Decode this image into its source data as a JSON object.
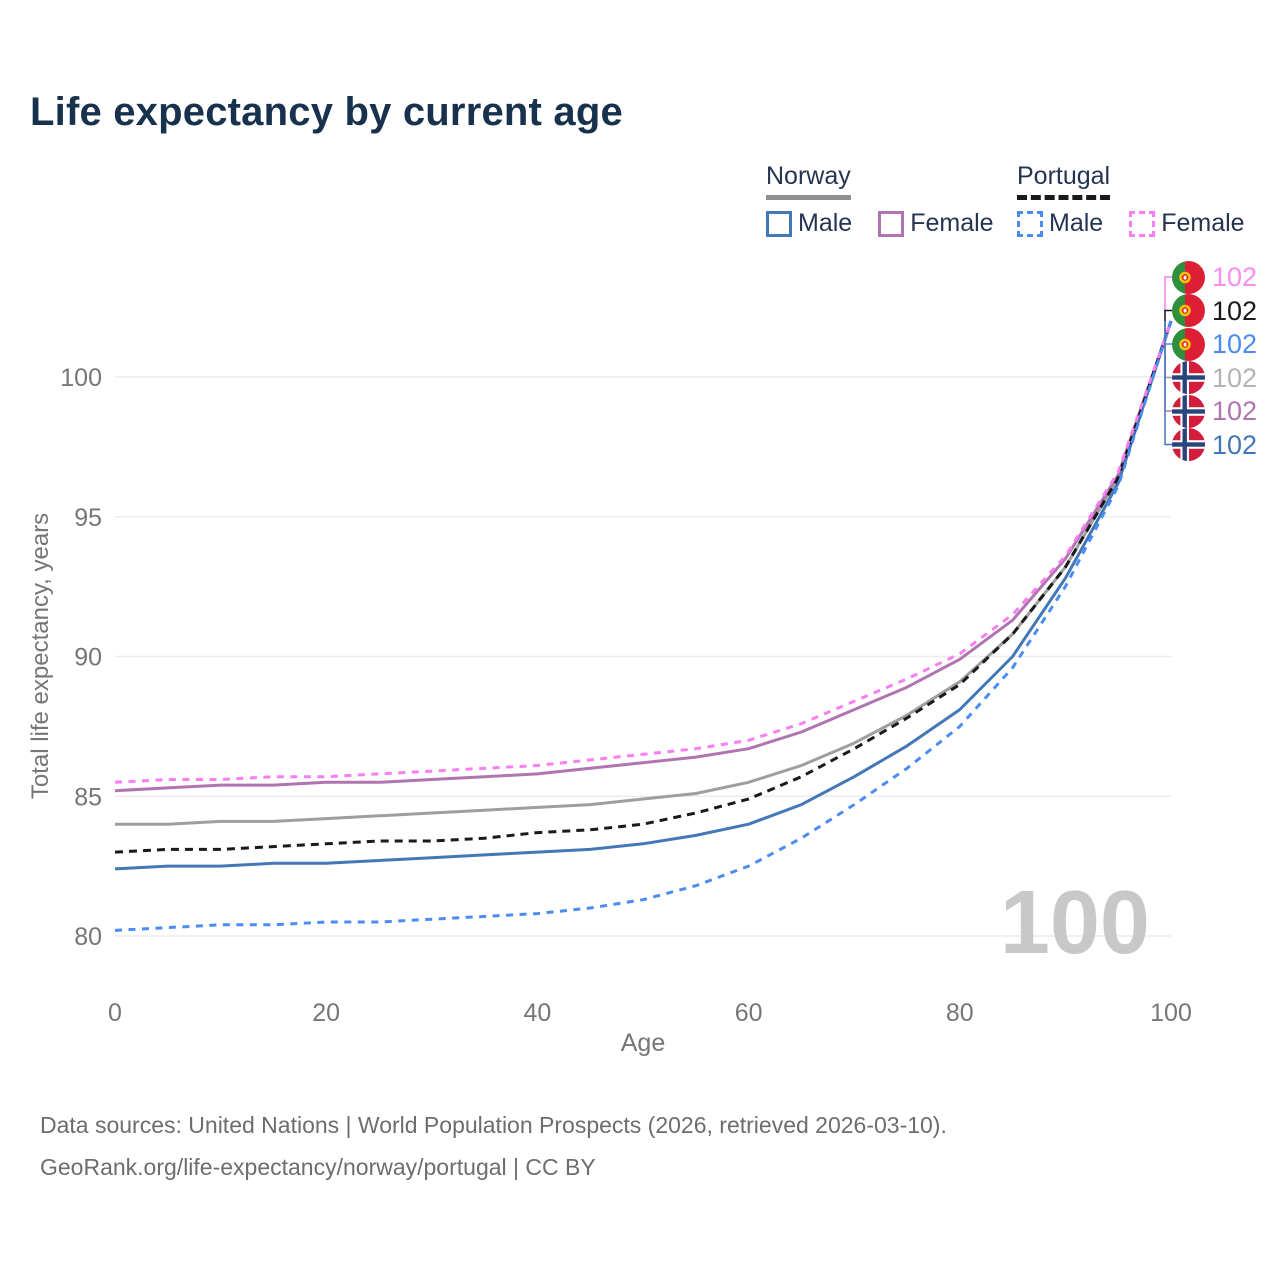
{
  "title": "Life expectancy by current age",
  "legend": {
    "groups": [
      {
        "country": "Norway",
        "line_style": "solid",
        "underline_color": "#8f8f8f",
        "items": [
          {
            "label": "Male",
            "color": "#4477b8",
            "dash": false
          },
          {
            "label": "Female",
            "color": "#b075b0",
            "dash": false
          }
        ]
      },
      {
        "country": "Portugal",
        "line_style": "dashed",
        "underline_color": "#1a1a1a",
        "items": [
          {
            "label": "Male",
            "color": "#4b8bf2",
            "dash": true
          },
          {
            "label": "Female",
            "color": "#f97ef2",
            "dash": true
          }
        ]
      }
    ]
  },
  "chart_data": {
    "type": "line",
    "title": "Life expectancy by current age",
    "xlabel": "Age",
    "ylabel": "Total life expectancy, years",
    "x": [
      0,
      5,
      10,
      15,
      20,
      25,
      30,
      35,
      40,
      45,
      50,
      55,
      60,
      65,
      70,
      75,
      80,
      85,
      90,
      95,
      100
    ],
    "xticks": [
      0,
      20,
      40,
      60,
      80,
      100
    ],
    "yticks": [
      80,
      85,
      90,
      95,
      100
    ],
    "xlim": [
      0,
      100
    ],
    "ylim": [
      78.5,
      104
    ],
    "grid": "horizontal",
    "legend_position": "top-right",
    "series": [
      {
        "name": "Norway Total",
        "country": "Norway",
        "sex": "Both",
        "color": "#9e9e9e",
        "label_color": "#b4b4b4",
        "dash": false,
        "end_label": "102",
        "end_label_row": 3,
        "values": [
          84.0,
          84.0,
          84.1,
          84.1,
          84.2,
          84.3,
          84.4,
          84.5,
          84.6,
          84.7,
          84.9,
          85.1,
          85.5,
          86.1,
          86.9,
          87.9,
          89.1,
          90.8,
          93.2,
          96.4,
          102
        ]
      },
      {
        "name": "Norway Female",
        "country": "Norway",
        "sex": "Female",
        "color": "#b075b0",
        "label_color": "#b075b0",
        "dash": false,
        "end_label": "102",
        "end_label_row": 4,
        "values": [
          85.2,
          85.3,
          85.4,
          85.4,
          85.5,
          85.5,
          85.6,
          85.7,
          85.8,
          86.0,
          86.2,
          86.4,
          86.7,
          87.3,
          88.1,
          88.9,
          89.9,
          91.3,
          93.5,
          96.5,
          102
        ]
      },
      {
        "name": "Norway Male",
        "country": "Norway",
        "sex": "Male",
        "color": "#4477b8",
        "label_color": "#4477b8",
        "dash": false,
        "end_label": "102",
        "end_label_row": 5,
        "values": [
          82.4,
          82.5,
          82.5,
          82.6,
          82.6,
          82.7,
          82.8,
          82.9,
          83.0,
          83.1,
          83.3,
          83.6,
          84.0,
          84.7,
          85.7,
          86.8,
          88.1,
          90.0,
          92.8,
          96.2,
          102
        ]
      },
      {
        "name": "Portugal Total",
        "country": "Portugal",
        "sex": "Both",
        "color": "#1a1a1a",
        "label_color": "#1a1a1a",
        "dash": true,
        "end_label": "102",
        "end_label_row": 1,
        "values": [
          83.0,
          83.1,
          83.1,
          83.2,
          83.3,
          83.4,
          83.4,
          83.5,
          83.7,
          83.8,
          84.0,
          84.4,
          84.9,
          85.7,
          86.7,
          87.8,
          89.0,
          90.8,
          93.2,
          96.4,
          102
        ]
      },
      {
        "name": "Portugal Female",
        "country": "Portugal",
        "sex": "Female",
        "color": "#f97ef2",
        "label_color": "#f98df0",
        "dash": true,
        "end_label": "102",
        "end_label_row": 0,
        "values": [
          85.5,
          85.6,
          85.6,
          85.7,
          85.7,
          85.8,
          85.9,
          86.0,
          86.1,
          86.3,
          86.5,
          86.7,
          87.0,
          87.6,
          88.4,
          89.2,
          90.1,
          91.5,
          93.6,
          96.6,
          102
        ]
      },
      {
        "name": "Portugal Male",
        "country": "Portugal",
        "sex": "Male",
        "color": "#4b8bf2",
        "label_color": "#4b8bf2",
        "dash": true,
        "end_label": "102",
        "end_label_row": 2,
        "values": [
          80.2,
          80.3,
          80.4,
          80.4,
          80.5,
          80.5,
          80.6,
          80.7,
          80.8,
          81.0,
          81.3,
          81.8,
          82.5,
          83.5,
          84.7,
          86.0,
          87.5,
          89.6,
          92.5,
          96.1,
          102
        ]
      }
    ]
  },
  "watermark": "100",
  "footer": {
    "line1": "Data sources: United Nations | World Population Prospects (2026, retrieved 2026-03-10).",
    "line2": "GeoRank.org/life-expectancy/norway/portugal | CC BY"
  },
  "colors": {
    "grid": "#ececec",
    "axis_text": "#767676",
    "title": "#18324e",
    "watermark": "#c8c8c8",
    "leader": "#9e9e9e"
  }
}
